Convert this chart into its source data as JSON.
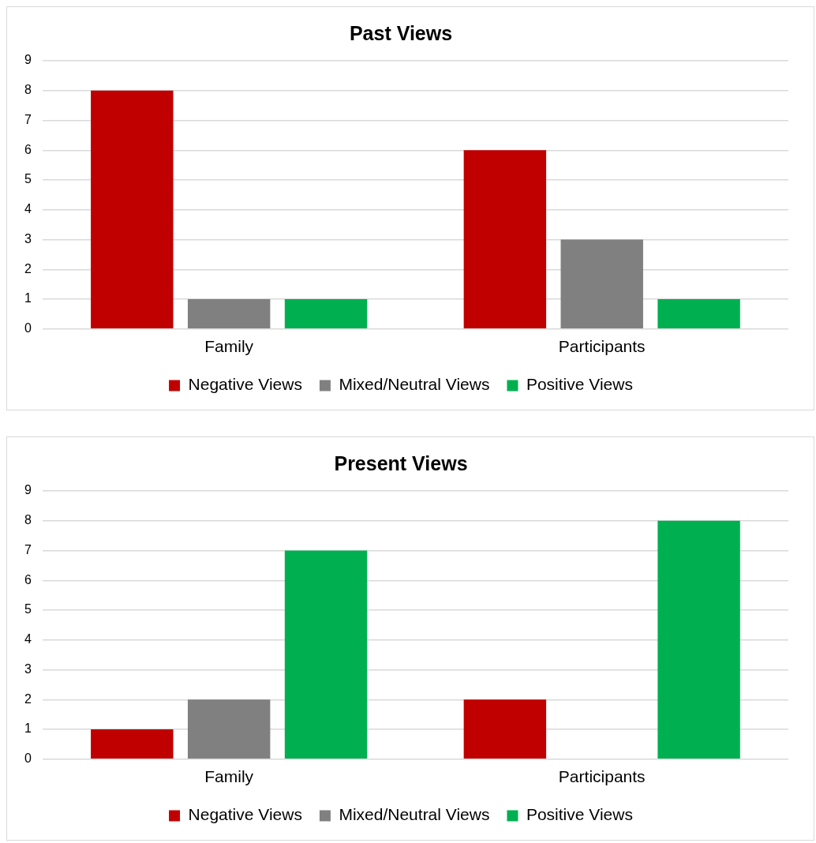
{
  "chart_data": [
    {
      "type": "bar",
      "title": "Past Views",
      "categories": [
        "Family",
        "Participants"
      ],
      "series": [
        {
          "name": "Negative Views",
          "color": "#c00000",
          "values": [
            8,
            6
          ]
        },
        {
          "name": "Mixed/Neutral Views",
          "color": "#808080",
          "values": [
            1,
            3
          ]
        },
        {
          "name": "Positive Views",
          "color": "#00b050",
          "values": [
            1,
            1
          ]
        }
      ],
      "ylim": [
        0,
        9
      ],
      "yticks": [
        0,
        1,
        2,
        3,
        4,
        5,
        6,
        7,
        8,
        9
      ],
      "grid": "y",
      "legend": "bottom"
    },
    {
      "type": "bar",
      "title": "Present Views",
      "categories": [
        "Family",
        "Participants"
      ],
      "series": [
        {
          "name": "Negative Views",
          "color": "#c00000",
          "values": [
            1,
            2
          ]
        },
        {
          "name": "Mixed/Neutral Views",
          "color": "#808080",
          "values": [
            2,
            0
          ]
        },
        {
          "name": "Positive Views",
          "color": "#00b050",
          "values": [
            7,
            8
          ]
        }
      ],
      "ylim": [
        0,
        9
      ],
      "yticks": [
        0,
        1,
        2,
        3,
        4,
        5,
        6,
        7,
        8,
        9
      ],
      "grid": "y",
      "legend": "bottom"
    }
  ]
}
